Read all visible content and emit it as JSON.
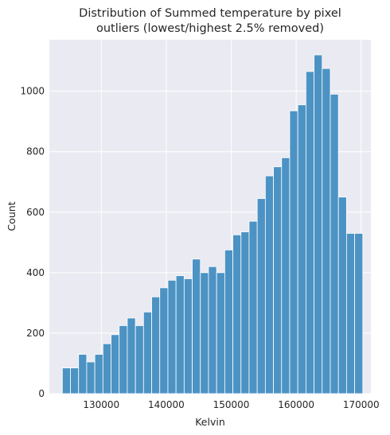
{
  "chart_data": {
    "type": "bar",
    "title_lines": [
      "Distribution of Summed temperature by pixel",
      "outliers (lowest/highest 2.5% removed)"
    ],
    "xlabel": "Kelvin",
    "ylabel": "Count",
    "xlim": [
      122000,
      171500
    ],
    "ylim": [
      0,
      1170
    ],
    "xticks": [
      130000,
      140000,
      150000,
      160000,
      170000
    ],
    "yticks": [
      0,
      200,
      400,
      600,
      800,
      1000
    ],
    "grid": true,
    "colors": {
      "bar": "#4c93c4",
      "background": "#eaeaf2",
      "grid": "#ffffff"
    },
    "bin_start": 124000,
    "bin_width": 1250,
    "values": [
      85,
      85,
      130,
      105,
      130,
      165,
      195,
      225,
      250,
      225,
      270,
      320,
      350,
      375,
      390,
      380,
      445,
      400,
      420,
      400,
      475,
      525,
      535,
      570,
      645,
      720,
      750,
      780,
      935,
      955,
      1065,
      1120,
      1075,
      990,
      650,
      530,
      530
    ]
  }
}
